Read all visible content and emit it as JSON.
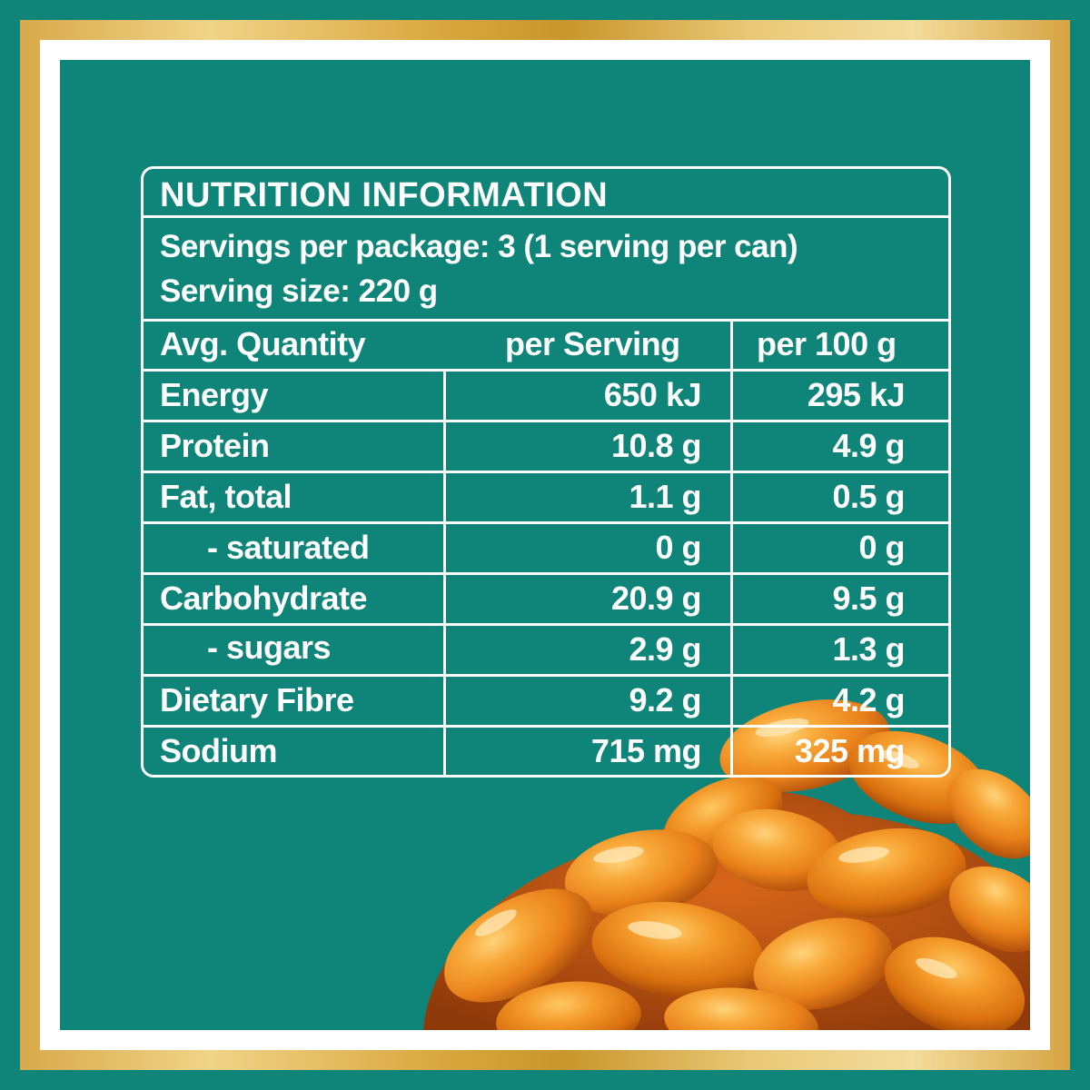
{
  "nutrition_panel": {
    "title": "NUTRITION INFORMATION",
    "servings_per_package": "Servings per package: 3 (1 serving per can)",
    "serving_size": "Serving size: 220 g",
    "header": {
      "quantity_label": "Avg. Quantity",
      "per_serving_label": "per Serving",
      "per_100g_label": "per 100 g"
    },
    "rows": [
      {
        "label": "Energy",
        "per_serving": "650 kJ",
        "per_100g": "295 kJ"
      },
      {
        "label": "Protein",
        "per_serving": "10.8 g",
        "per_100g": "4.9 g"
      },
      {
        "label": "Fat, total",
        "per_serving": "1.1 g",
        "per_100g": "0.5 g"
      },
      {
        "label": "- saturated",
        "per_serving": "0 g",
        "per_100g": "0 g"
      },
      {
        "label": "Carbohydrate",
        "per_serving": "20.9 g",
        "per_100g": "9.5 g"
      },
      {
        "label": "- sugars",
        "per_serving": "2.9 g",
        "per_100g": "1.3 g"
      },
      {
        "label": "Dietary Fibre",
        "per_serving": "9.2 g",
        "per_100g": "4.2 g"
      },
      {
        "label": "Sodium",
        "per_serving": "715 mg",
        "per_100g": "325 mg"
      }
    ]
  },
  "colors": {
    "background_teal": "#0f8478",
    "frame_gold": "#d9a73e",
    "frame_white": "#ffffff",
    "text": "#ffffff",
    "bean_orange": "#f09a1e"
  },
  "decoration": {
    "image": "baked-beans-illustration"
  }
}
